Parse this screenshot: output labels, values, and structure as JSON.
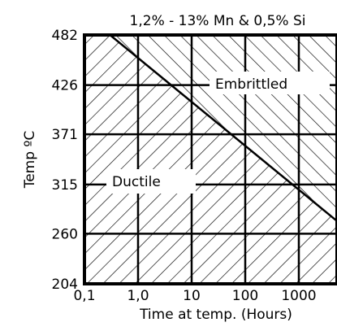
{
  "chart_data": {
    "type": "area",
    "title": "1,2% - 13% Mn & 0,5% Si",
    "xlabel": "Time at temp. (Hours)",
    "ylabel": "Temp ºC",
    "x_scale": "log",
    "x_ticks": [
      "0,1",
      "1,0",
      "10",
      "100",
      "1000"
    ],
    "x_tick_values": [
      0.1,
      1,
      10,
      100,
      1000
    ],
    "xlim": [
      0.1,
      10000
    ],
    "y_ticks": [
      "482",
      "426",
      "371",
      "315",
      "260",
      "204"
    ],
    "y_tick_values": [
      482,
      426,
      371,
      315,
      260,
      204
    ],
    "ylim": [
      204,
      482
    ],
    "grid": true,
    "boundary": {
      "x": [
        0.3,
        10000
      ],
      "y": [
        482,
        260
      ]
    },
    "regions": [
      {
        "label": "Embrittled",
        "position": "upper-right"
      },
      {
        "label": "Ductile",
        "position": "lower-left"
      }
    ],
    "colors": {
      "line": "#000000",
      "background": "#ffffff"
    }
  }
}
